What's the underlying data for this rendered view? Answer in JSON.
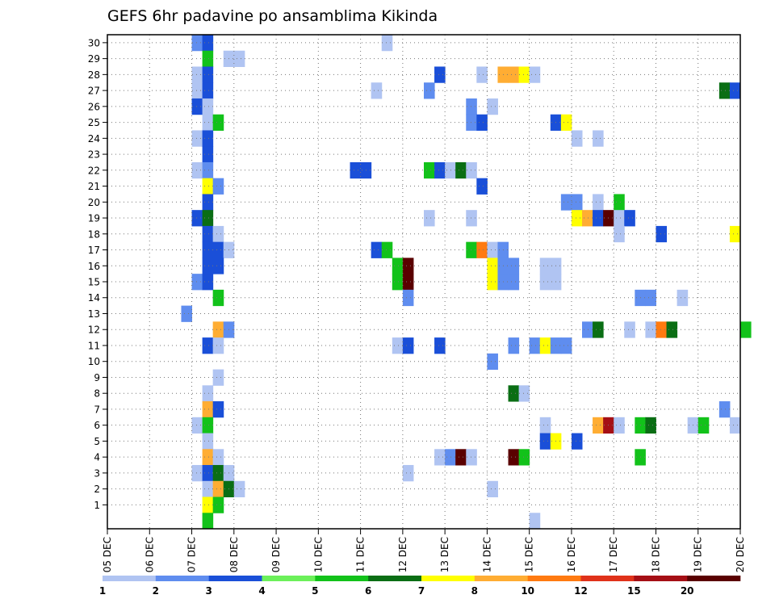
{
  "chart_data": {
    "type": "heatmap",
    "title": "GEFS 6hr padavine po ansamblima Kikinda",
    "x_tick_labels": [
      "05 DEC",
      "06 DEC",
      "07 DEC",
      "08 DEC",
      "09 DEC",
      "10 DEC",
      "11 DEC",
      "12 DEC",
      "13 DEC",
      "14 DEC",
      "15 DEC",
      "16 DEC",
      "17 DEC",
      "18 DEC",
      "19 DEC",
      "20 DEC"
    ],
    "y_tick_labels": [
      "1",
      "2",
      "3",
      "4",
      "5",
      "6",
      "7",
      "8",
      "9",
      "10",
      "11",
      "12",
      "13",
      "14",
      "15",
      "16",
      "17",
      "18",
      "19",
      "20",
      "21",
      "22",
      "23",
      "24",
      "25",
      "26",
      "27",
      "28",
      "29",
      "30"
    ],
    "time_step_hours": 6,
    "xlim": [
      "05 DEC 00Z",
      "20 DEC 00Z"
    ],
    "ylim": [
      0,
      30
    ],
    "grid": true,
    "colorbar": {
      "levels": [
        1,
        2,
        3,
        4,
        5,
        6,
        7,
        8,
        10,
        12,
        15,
        20
      ],
      "labels": [
        "1",
        "2",
        "3",
        "4",
        "5",
        "6",
        "7",
        "8",
        "10",
        "12",
        "15",
        "20"
      ],
      "colors": [
        "#b0c4f2",
        "#5f8def",
        "#1a4fd8",
        "#6cf05a",
        "#12c21a",
        "#0a6e14",
        "#ffff00",
        "#ffad33",
        "#ff7a10",
        "#e0321a",
        "#a50f15",
        "#5a0000"
      ]
    },
    "cells": [
      [
        30,
        "07 DEC 00Z",
        2
      ],
      [
        30,
        "07 DEC 06Z",
        3
      ],
      [
        30,
        "11 DEC 12Z",
        1
      ],
      [
        29,
        "07 DEC 06Z",
        5
      ],
      [
        29,
        "07 DEC 18Z",
        1
      ],
      [
        29,
        "08 DEC 00Z",
        1
      ],
      [
        28,
        "07 DEC 00Z",
        1
      ],
      [
        28,
        "07 DEC 06Z",
        3
      ],
      [
        28,
        "12 DEC 18Z",
        3
      ],
      [
        28,
        "13 DEC 18Z",
        1
      ],
      [
        28,
        "14 DEC 06Z",
        8
      ],
      [
        28,
        "14 DEC 12Z",
        8
      ],
      [
        28,
        "14 DEC 18Z",
        7
      ],
      [
        28,
        "15 DEC 00Z",
        1
      ],
      [
        27,
        "07 DEC 00Z",
        1
      ],
      [
        27,
        "07 DEC 06Z",
        3
      ],
      [
        27,
        "11 DEC 06Z",
        1
      ],
      [
        27,
        "12 DEC 12Z",
        2
      ],
      [
        27,
        "19 DEC 12Z",
        6
      ],
      [
        27,
        "19 DEC 18Z",
        3
      ],
      [
        26,
        "07 DEC 00Z",
        3
      ],
      [
        26,
        "07 DEC 06Z",
        1
      ],
      [
        26,
        "13 DEC 12Z",
        2
      ],
      [
        26,
        "14 DEC 00Z",
        1
      ],
      [
        25,
        "07 DEC 06Z",
        1
      ],
      [
        25,
        "07 DEC 12Z",
        5
      ],
      [
        25,
        "13 DEC 12Z",
        2
      ],
      [
        25,
        "13 DEC 18Z",
        3
      ],
      [
        25,
        "15 DEC 12Z",
        3
      ],
      [
        25,
        "15 DEC 18Z",
        7
      ],
      [
        24,
        "07 DEC 00Z",
        1
      ],
      [
        24,
        "07 DEC 06Z",
        3
      ],
      [
        24,
        "16 DEC 00Z",
        1
      ],
      [
        24,
        "16 DEC 12Z",
        1
      ],
      [
        23,
        "07 DEC 06Z",
        3
      ],
      [
        22,
        "07 DEC 00Z",
        1
      ],
      [
        22,
        "07 DEC 06Z",
        2
      ],
      [
        22,
        "10 DEC 18Z",
        3
      ],
      [
        22,
        "11 DEC 00Z",
        3
      ],
      [
        22,
        "12 DEC 12Z",
        5
      ],
      [
        22,
        "12 DEC 18Z",
        3
      ],
      [
        22,
        "13 DEC 00Z",
        1
      ],
      [
        22,
        "13 DEC 06Z",
        6
      ],
      [
        22,
        "13 DEC 12Z",
        1
      ],
      [
        21,
        "07 DEC 06Z",
        7
      ],
      [
        21,
        "07 DEC 12Z",
        2
      ],
      [
        21,
        "13 DEC 18Z",
        3
      ],
      [
        20,
        "07 DEC 06Z",
        3
      ],
      [
        20,
        "15 DEC 18Z",
        2
      ],
      [
        20,
        "16 DEC 00Z",
        2
      ],
      [
        20,
        "16 DEC 12Z",
        1
      ],
      [
        20,
        "17 DEC 00Z",
        5
      ],
      [
        19,
        "07 DEC 00Z",
        3
      ],
      [
        19,
        "07 DEC 06Z",
        6
      ],
      [
        19,
        "12 DEC 12Z",
        1
      ],
      [
        19,
        "13 DEC 12Z",
        1
      ],
      [
        19,
        "16 DEC 00Z",
        7
      ],
      [
        19,
        "16 DEC 06Z",
        8
      ],
      [
        19,
        "16 DEC 12Z",
        3
      ],
      [
        19,
        "16 DEC 18Z",
        20
      ],
      [
        19,
        "17 DEC 00Z",
        1
      ],
      [
        19,
        "17 DEC 06Z",
        3
      ],
      [
        18,
        "07 DEC 06Z",
        3
      ],
      [
        18,
        "07 DEC 12Z",
        1
      ],
      [
        18,
        "17 DEC 00Z",
        1
      ],
      [
        18,
        "18 DEC 00Z",
        3
      ],
      [
        18,
        "19 DEC 18Z",
        7
      ],
      [
        17,
        "07 DEC 06Z",
        3
      ],
      [
        17,
        "07 DEC 12Z",
        3
      ],
      [
        17,
        "07 DEC 18Z",
        1
      ],
      [
        17,
        "11 DEC 06Z",
        3
      ],
      [
        17,
        "11 DEC 12Z",
        5
      ],
      [
        17,
        "13 DEC 12Z",
        5
      ],
      [
        17,
        "13 DEC 18Z",
        10
      ],
      [
        17,
        "14 DEC 00Z",
        1
      ],
      [
        17,
        "14 DEC 06Z",
        2
      ],
      [
        16,
        "07 DEC 06Z",
        3
      ],
      [
        16,
        "07 DEC 12Z",
        3
      ],
      [
        16,
        "11 DEC 18Z",
        5
      ],
      [
        16,
        "12 DEC 00Z",
        20
      ],
      [
        16,
        "14 DEC 00Z",
        7
      ],
      [
        16,
        "14 DEC 06Z",
        2
      ],
      [
        16,
        "14 DEC 12Z",
        2
      ],
      [
        16,
        "15 DEC 06Z",
        1
      ],
      [
        16,
        "15 DEC 12Z",
        1
      ],
      [
        15,
        "07 DEC 00Z",
        2
      ],
      [
        15,
        "07 DEC 06Z",
        3
      ],
      [
        15,
        "11 DEC 18Z",
        5
      ],
      [
        15,
        "12 DEC 00Z",
        20
      ],
      [
        15,
        "14 DEC 00Z",
        7
      ],
      [
        15,
        "14 DEC 06Z",
        2
      ],
      [
        15,
        "14 DEC 12Z",
        2
      ],
      [
        15,
        "15 DEC 06Z",
        1
      ],
      [
        15,
        "15 DEC 12Z",
        1
      ],
      [
        14,
        "07 DEC 12Z",
        5
      ],
      [
        14,
        "12 DEC 00Z",
        2
      ],
      [
        14,
        "17 DEC 12Z",
        2
      ],
      [
        14,
        "17 DEC 18Z",
        2
      ],
      [
        14,
        "18 DEC 12Z",
        1
      ],
      [
        13,
        "06 DEC 18Z",
        2
      ],
      [
        12,
        "07 DEC 12Z",
        8
      ],
      [
        12,
        "07 DEC 18Z",
        2
      ],
      [
        12,
        "16 DEC 06Z",
        2
      ],
      [
        12,
        "16 DEC 12Z",
        6
      ],
      [
        12,
        "17 DEC 06Z",
        1
      ],
      [
        12,
        "17 DEC 18Z",
        1
      ],
      [
        12,
        "18 DEC 00Z",
        10
      ],
      [
        12,
        "18 DEC 06Z",
        6
      ],
      [
        12,
        "20 DEC 00Z",
        5
      ],
      [
        11,
        "07 DEC 06Z",
        3
      ],
      [
        11,
        "07 DEC 12Z",
        1
      ],
      [
        11,
        "11 DEC 18Z",
        1
      ],
      [
        11,
        "12 DEC 00Z",
        3
      ],
      [
        11,
        "12 DEC 18Z",
        3
      ],
      [
        11,
        "14 DEC 12Z",
        2
      ],
      [
        11,
        "15 DEC 00Z",
        2
      ],
      [
        11,
        "15 DEC 06Z",
        7
      ],
      [
        11,
        "15 DEC 12Z",
        2
      ],
      [
        11,
        "15 DEC 18Z",
        2
      ],
      [
        10,
        "14 DEC 00Z",
        2
      ],
      [
        9,
        "07 DEC 12Z",
        1
      ],
      [
        8,
        "07 DEC 06Z",
        1
      ],
      [
        8,
        "14 DEC 12Z",
        6
      ],
      [
        8,
        "14 DEC 18Z",
        1
      ],
      [
        7,
        "07 DEC 06Z",
        8
      ],
      [
        7,
        "07 DEC 12Z",
        3
      ],
      [
        7,
        "19 DEC 12Z",
        2
      ],
      [
        6,
        "07 DEC 00Z",
        1
      ],
      [
        6,
        "07 DEC 06Z",
        5
      ],
      [
        6,
        "15 DEC 06Z",
        1
      ],
      [
        6,
        "16 DEC 12Z",
        8
      ],
      [
        6,
        "16 DEC 18Z",
        15
      ],
      [
        6,
        "17 DEC 00Z",
        1
      ],
      [
        6,
        "17 DEC 12Z",
        5
      ],
      [
        6,
        "17 DEC 18Z",
        6
      ],
      [
        6,
        "18 DEC 18Z",
        1
      ],
      [
        6,
        "19 DEC 00Z",
        5
      ],
      [
        6,
        "19 DEC 18Z",
        1
      ],
      [
        5,
        "07 DEC 06Z",
        1
      ],
      [
        5,
        "15 DEC 06Z",
        3
      ],
      [
        5,
        "15 DEC 12Z",
        7
      ],
      [
        5,
        "16 DEC 00Z",
        3
      ],
      [
        4,
        "07 DEC 06Z",
        8
      ],
      [
        4,
        "07 DEC 12Z",
        1
      ],
      [
        4,
        "12 DEC 18Z",
        1
      ],
      [
        4,
        "13 DEC 00Z",
        2
      ],
      [
        4,
        "13 DEC 06Z",
        20
      ],
      [
        4,
        "13 DEC 12Z",
        1
      ],
      [
        4,
        "14 DEC 12Z",
        20
      ],
      [
        4,
        "14 DEC 18Z",
        5
      ],
      [
        4,
        "17 DEC 12Z",
        5
      ],
      [
        3,
        "07 DEC 00Z",
        1
      ],
      [
        3,
        "07 DEC 06Z",
        3
      ],
      [
        3,
        "07 DEC 12Z",
        6
      ],
      [
        3,
        "07 DEC 18Z",
        1
      ],
      [
        3,
        "12 DEC 00Z",
        1
      ],
      [
        2,
        "07 DEC 06Z",
        1
      ],
      [
        2,
        "07 DEC 12Z",
        8
      ],
      [
        2,
        "07 DEC 18Z",
        6
      ],
      [
        2,
        "08 DEC 00Z",
        1
      ],
      [
        2,
        "14 DEC 00Z",
        1
      ],
      [
        1,
        "07 DEC 06Z",
        7
      ],
      [
        1,
        "07 DEC 12Z",
        5
      ],
      [
        0,
        "07 DEC 06Z",
        5
      ],
      [
        0,
        "15 DEC 00Z",
        1
      ]
    ]
  }
}
